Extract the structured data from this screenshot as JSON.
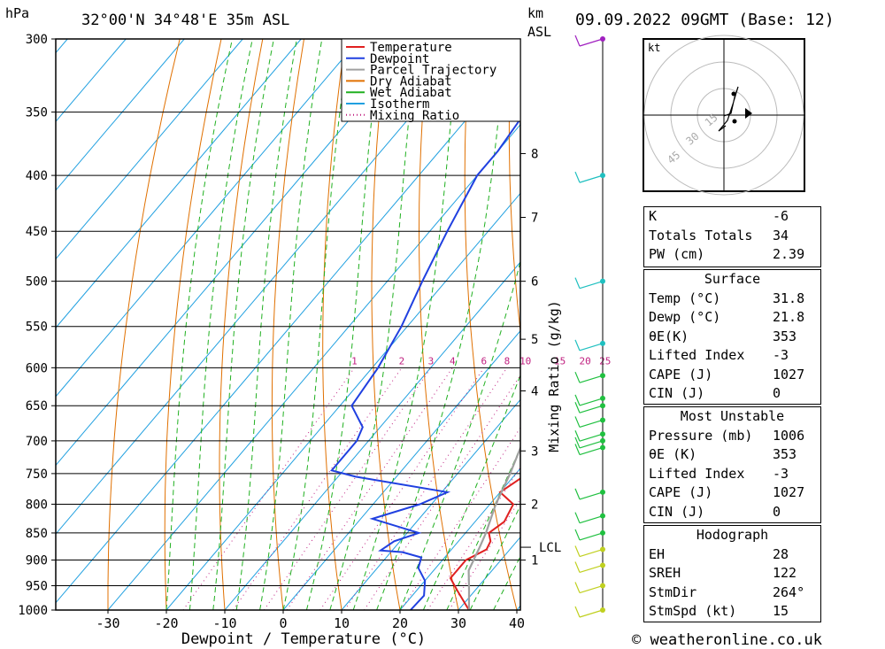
{
  "header": {
    "hpa": "hPa",
    "location": "32°00'N 34°48'E 35m ASL",
    "km": "km",
    "asl": "ASL",
    "datetime": "09.09.2022 09GMT (Base: 12)"
  },
  "footer": {
    "xlabel": "Dewpoint / Temperature (°C)",
    "credit": "© weatheronline.co.uk"
  },
  "legend": {
    "items": [
      {
        "label": "Temperature",
        "color": "#e02020",
        "style": "solid"
      },
      {
        "label": "Dewpoint",
        "color": "#2040e0",
        "style": "solid"
      },
      {
        "label": "Parcel Trajectory",
        "color": "#a0a0a0",
        "style": "solid"
      },
      {
        "label": "Dry Adiabat",
        "color": "#e07000",
        "style": "solid"
      },
      {
        "label": "Wet Adiabat",
        "color": "#20b020",
        "style": "solid"
      },
      {
        "label": "Isotherm",
        "color": "#20a0e0",
        "style": "solid"
      },
      {
        "label": "Mixing Ratio",
        "color": "#c02080",
        "style": "dotted"
      }
    ]
  },
  "mixing_axis_label": "Mixing Ratio (g/kg)",
  "lcl_label": "LCL",
  "hodograph": {
    "unit": "kt",
    "ring_labels": [
      "15",
      "30",
      "45"
    ]
  },
  "indices": {
    "rows": [
      {
        "k": "K",
        "v": "-6"
      },
      {
        "k": "Totals Totals",
        "v": "34"
      },
      {
        "k": "PW (cm)",
        "v": "2.39"
      }
    ]
  },
  "surface": {
    "title": "Surface",
    "rows": [
      {
        "k": "Temp (°C)",
        "v": "31.8"
      },
      {
        "k": "Dewp (°C)",
        "v": "21.8"
      },
      {
        "k": "θE(K)",
        "v": "353"
      },
      {
        "k": "Lifted Index",
        "v": "-3"
      },
      {
        "k": "CAPE (J)",
        "v": "1027"
      },
      {
        "k": "CIN (J)",
        "v": "0"
      }
    ]
  },
  "most_unstable": {
    "title": "Most Unstable",
    "rows": [
      {
        "k": "Pressure (mb)",
        "v": "1006"
      },
      {
        "k": "θE (K)",
        "v": "353"
      },
      {
        "k": "Lifted Index",
        "v": "-3"
      },
      {
        "k": "CAPE (J)",
        "v": "1027"
      },
      {
        "k": "CIN (J)",
        "v": "0"
      }
    ]
  },
  "hodo_table": {
    "title": "Hodograph",
    "rows": [
      {
        "k": "EH",
        "v": "28"
      },
      {
        "k": "SREH",
        "v": "122"
      },
      {
        "k": "StmDir",
        "v": "264°"
      },
      {
        "k": "StmSpd (kt)",
        "v": "15"
      }
    ]
  },
  "chart_data": {
    "type": "line",
    "title": "",
    "xlabel": "Dewpoint / Temperature (°C)",
    "ylabel": "hPa",
    "x_ticks": [
      -30,
      -20,
      -10,
      0,
      10,
      20,
      30,
      40
    ],
    "xlim": [
      -40,
      40
    ],
    "pressure_levels": [
      300,
      350,
      400,
      450,
      500,
      550,
      600,
      650,
      700,
      750,
      800,
      850,
      900,
      950,
      1000
    ],
    "ylim_hpa": [
      1000,
      300
    ],
    "height_ticks_km": [
      {
        "label": "8",
        "p": 382
      },
      {
        "label": "7",
        "p": 437
      },
      {
        "label": "6",
        "p": 500
      },
      {
        "label": "5",
        "p": 565
      },
      {
        "label": "4",
        "p": 630
      },
      {
        "label": "3",
        "p": 715
      },
      {
        "label": "2",
        "p": 800
      },
      {
        "label": "1",
        "p": 900
      }
    ],
    "lcl_p": 876,
    "mixing_ratio_labels": [
      "1",
      "2",
      "3",
      "4",
      "6",
      "8",
      "10",
      "15",
      "20",
      "25"
    ],
    "series": [
      {
        "name": "Temperature",
        "color": "#e02020",
        "points": [
          [
            31.8,
            1000
          ],
          [
            27,
            960
          ],
          [
            24,
            935
          ],
          [
            24,
            900
          ],
          [
            26,
            880
          ],
          [
            25.5,
            865
          ],
          [
            24,
            850
          ],
          [
            25,
            830
          ],
          [
            24,
            800
          ],
          [
            20,
            780
          ],
          [
            22,
            750
          ],
          [
            18,
            700
          ],
          [
            17,
            680
          ],
          [
            16,
            650
          ],
          [
            13,
            600
          ],
          [
            9,
            550
          ],
          [
            5,
            500
          ],
          [
            1,
            450
          ],
          [
            -3,
            400
          ],
          [
            -7,
            370
          ]
        ]
      },
      {
        "name": "Dewpoint",
        "color": "#2040e0",
        "points": [
          [
            21.8,
            1000
          ],
          [
            22,
            970
          ],
          [
            20,
            940
          ],
          [
            17,
            915
          ],
          [
            16,
            895
          ],
          [
            12,
            885
          ],
          [
            8,
            882
          ],
          [
            9,
            865
          ],
          [
            12,
            850
          ],
          [
            2,
            825
          ],
          [
            8,
            800
          ],
          [
            11,
            780
          ],
          [
            -7,
            755
          ],
          [
            -12,
            745
          ],
          [
            -12,
            700
          ],
          [
            -13,
            680
          ],
          [
            -18,
            650
          ],
          [
            -19,
            600
          ],
          [
            -21,
            550
          ],
          [
            -24,
            500
          ],
          [
            -27,
            450
          ],
          [
            -30,
            400
          ],
          [
            -30,
            380
          ],
          [
            -31,
            350
          ],
          [
            -32,
            300
          ]
        ]
      },
      {
        "name": "Parcel Trajectory",
        "color": "#a0a0a0",
        "points": [
          [
            31.8,
            1000
          ],
          [
            29,
            960
          ],
          [
            26,
            920
          ],
          [
            24.5,
            876
          ],
          [
            23.5,
            850
          ],
          [
            21,
            800
          ],
          [
            19,
            750
          ],
          [
            16.5,
            700
          ],
          [
            13.5,
            650
          ],
          [
            10,
            600
          ],
          [
            6,
            550
          ],
          [
            1.5,
            500
          ],
          [
            -3,
            450
          ],
          [
            -8,
            400
          ],
          [
            -13,
            365
          ]
        ]
      }
    ]
  },
  "wind_profile": {
    "levels_hpa": [
      300,
      400,
      500,
      570,
      610,
      640,
      650,
      670,
      690,
      700,
      710,
      780,
      820,
      850,
      880,
      910,
      950,
      1000
    ]
  }
}
